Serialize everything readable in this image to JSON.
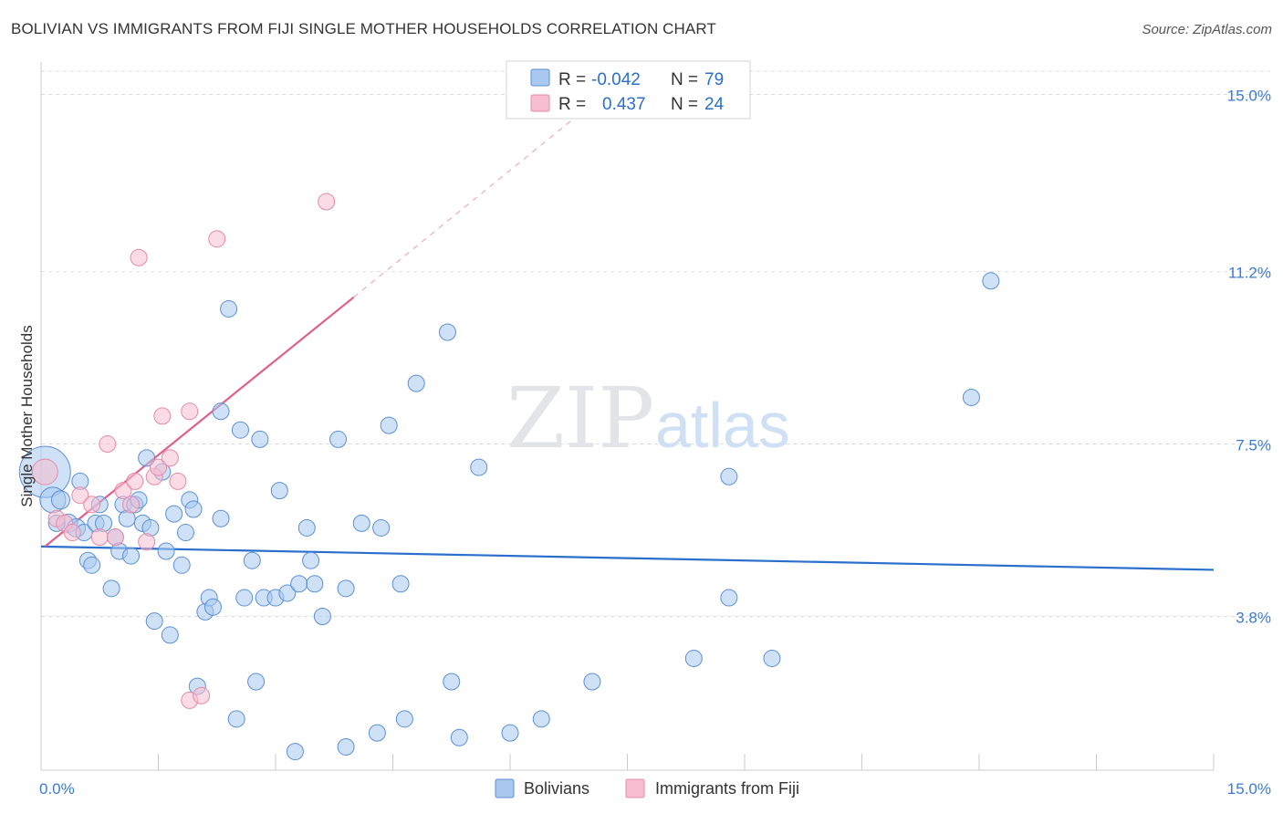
{
  "title": "BOLIVIAN VS IMMIGRANTS FROM FIJI SINGLE MOTHER HOUSEHOLDS CORRELATION CHART",
  "source": "Source: ZipAtlas.com",
  "watermark": {
    "zip": "ZIP",
    "atlas": "atlas"
  },
  "colors": {
    "blue_fill": "#a8c8f0",
    "blue_stroke": "#5b8fd6",
    "blue_line": "#2a6fcc",
    "pink_fill": "#f7bdd0",
    "pink_stroke": "#e58aa8",
    "pink_line": "#e0608a",
    "tick_text": "#3a7bd5",
    "grid": "#d9dde3"
  },
  "legend": {
    "rows": [
      {
        "r_label": "R =",
        "r_value": "-0.042",
        "n_label": "N =",
        "n_value": "79",
        "series": "blue"
      },
      {
        "r_label": "R =",
        "r_value": "0.437",
        "n_label": "N =",
        "n_value": "24",
        "series": "pink"
      }
    ]
  },
  "chart_data": {
    "type": "scatter",
    "title": "BOLIVIAN VS IMMIGRANTS FROM FIJI SINGLE MOTHER HOUSEHOLDS CORRELATION CHART",
    "xlabel": "",
    "ylabel": "Single Mother Households",
    "xlim": [
      0,
      15
    ],
    "ylim": [
      0.5,
      15.5
    ],
    "x_tick_labels": [
      "0.0%",
      "15.0%"
    ],
    "y_ticks": [
      3.8,
      7.5,
      11.2,
      15.0
    ],
    "y_tick_labels": [
      "3.8%",
      "7.5%",
      "11.2%",
      "15.0%"
    ],
    "grid": true,
    "series": [
      {
        "name": "Bolivians",
        "color": "blue",
        "trend": {
          "x": [
            0,
            15
          ],
          "y": [
            5.3,
            4.8
          ]
        },
        "points": [
          [
            0.05,
            6.9,
            28
          ],
          [
            0.15,
            6.3,
            14
          ],
          [
            0.25,
            6.3,
            10
          ],
          [
            0.35,
            5.8,
            10
          ],
          [
            0.45,
            5.7,
            10
          ],
          [
            0.5,
            6.7,
            9
          ],
          [
            0.55,
            5.6,
            9
          ],
          [
            0.6,
            5.0,
            9
          ],
          [
            0.65,
            4.9,
            9
          ],
          [
            0.7,
            5.8,
            9
          ],
          [
            0.75,
            6.2,
            9
          ],
          [
            0.8,
            5.8,
            9
          ],
          [
            0.9,
            4.4,
            9
          ],
          [
            0.95,
            5.5,
            9
          ],
          [
            1.0,
            5.2,
            9
          ],
          [
            1.05,
            6.2,
            9
          ],
          [
            1.1,
            5.9,
            9
          ],
          [
            1.15,
            5.1,
            9
          ],
          [
            1.2,
            6.2,
            9
          ],
          [
            1.25,
            6.3,
            9
          ],
          [
            1.3,
            5.8,
            9
          ],
          [
            1.35,
            7.2,
            9
          ],
          [
            1.4,
            5.7,
            9
          ],
          [
            1.45,
            3.7,
            9
          ],
          [
            1.55,
            6.9,
            9
          ],
          [
            1.6,
            5.2,
            9
          ],
          [
            1.65,
            3.4,
            9
          ],
          [
            1.7,
            6.0,
            9
          ],
          [
            1.8,
            4.9,
            9
          ],
          [
            1.85,
            5.6,
            9
          ],
          [
            1.9,
            6.3,
            9
          ],
          [
            1.95,
            6.1,
            9
          ],
          [
            2.0,
            2.3,
            9
          ],
          [
            2.1,
            3.9,
            9
          ],
          [
            2.15,
            4.2,
            9
          ],
          [
            2.2,
            4.0,
            9
          ],
          [
            2.3,
            5.9,
            9
          ],
          [
            2.3,
            8.2,
            9
          ],
          [
            2.4,
            10.4,
            9
          ],
          [
            2.5,
            1.6,
            9
          ],
          [
            2.55,
            7.8,
            9
          ],
          [
            2.6,
            4.2,
            9
          ],
          [
            2.7,
            5.0,
            9
          ],
          [
            2.75,
            2.4,
            9
          ],
          [
            2.8,
            7.6,
            9
          ],
          [
            2.85,
            4.2,
            9
          ],
          [
            3.0,
            4.2,
            9
          ],
          [
            3.05,
            6.5,
            9
          ],
          [
            3.15,
            4.3,
            9
          ],
          [
            3.25,
            0.9,
            9
          ],
          [
            3.3,
            4.5,
            9
          ],
          [
            3.4,
            5.7,
            9
          ],
          [
            3.45,
            5.0,
            9
          ],
          [
            3.5,
            4.5,
            9
          ],
          [
            3.6,
            3.8,
            9
          ],
          [
            3.8,
            7.6,
            9
          ],
          [
            3.9,
            1.0,
            9
          ],
          [
            3.9,
            4.4,
            9
          ],
          [
            4.1,
            5.8,
            9
          ],
          [
            4.3,
            1.3,
            9
          ],
          [
            4.35,
            5.7,
            9
          ],
          [
            4.45,
            7.9,
            9
          ],
          [
            4.6,
            4.5,
            9
          ],
          [
            4.65,
            1.6,
            9
          ],
          [
            4.8,
            8.8,
            9
          ],
          [
            5.2,
            9.9,
            9
          ],
          [
            5.25,
            2.4,
            9
          ],
          [
            5.35,
            1.2,
            9
          ],
          [
            5.6,
            7.0,
            9
          ],
          [
            6.0,
            1.3,
            9
          ],
          [
            6.4,
            1.6,
            9
          ],
          [
            7.05,
            2.4,
            9
          ],
          [
            8.35,
            2.9,
            9
          ],
          [
            8.8,
            6.8,
            9
          ],
          [
            8.8,
            4.2,
            9
          ],
          [
            9.35,
            2.9,
            9
          ],
          [
            11.9,
            8.5,
            9
          ],
          [
            12.15,
            11.0,
            9
          ],
          [
            0.2,
            5.8,
            9
          ]
        ]
      },
      {
        "name": "Immigrants from Fiji",
        "color": "pink",
        "trend": {
          "x": [
            0.05,
            4.0
          ],
          "y": [
            5.3,
            10.65
          ]
        },
        "trend_dashed": {
          "x": [
            4.0,
            6.9
          ],
          "y": [
            10.65,
            14.6
          ]
        },
        "points": [
          [
            0.05,
            6.9,
            14
          ],
          [
            0.2,
            5.9,
            9
          ],
          [
            0.3,
            5.8,
            9
          ],
          [
            0.4,
            5.6,
            9
          ],
          [
            0.5,
            6.4,
            9
          ],
          [
            0.65,
            6.2,
            9
          ],
          [
            0.75,
            5.5,
            9
          ],
          [
            0.85,
            7.5,
            9
          ],
          [
            0.95,
            5.5,
            9
          ],
          [
            1.05,
            6.5,
            9
          ],
          [
            1.15,
            6.2,
            9
          ],
          [
            1.2,
            6.7,
            9
          ],
          [
            1.25,
            11.5,
            9
          ],
          [
            1.35,
            5.4,
            9
          ],
          [
            1.45,
            6.8,
            9
          ],
          [
            1.5,
            7.0,
            9
          ],
          [
            1.55,
            8.1,
            9
          ],
          [
            1.65,
            7.2,
            9
          ],
          [
            1.75,
            6.7,
            9
          ],
          [
            1.9,
            8.2,
            9
          ],
          [
            1.9,
            2.0,
            9
          ],
          [
            2.05,
            2.1,
            9
          ],
          [
            2.25,
            11.9,
            9
          ],
          [
            3.65,
            12.7,
            9
          ]
        ]
      }
    ]
  }
}
